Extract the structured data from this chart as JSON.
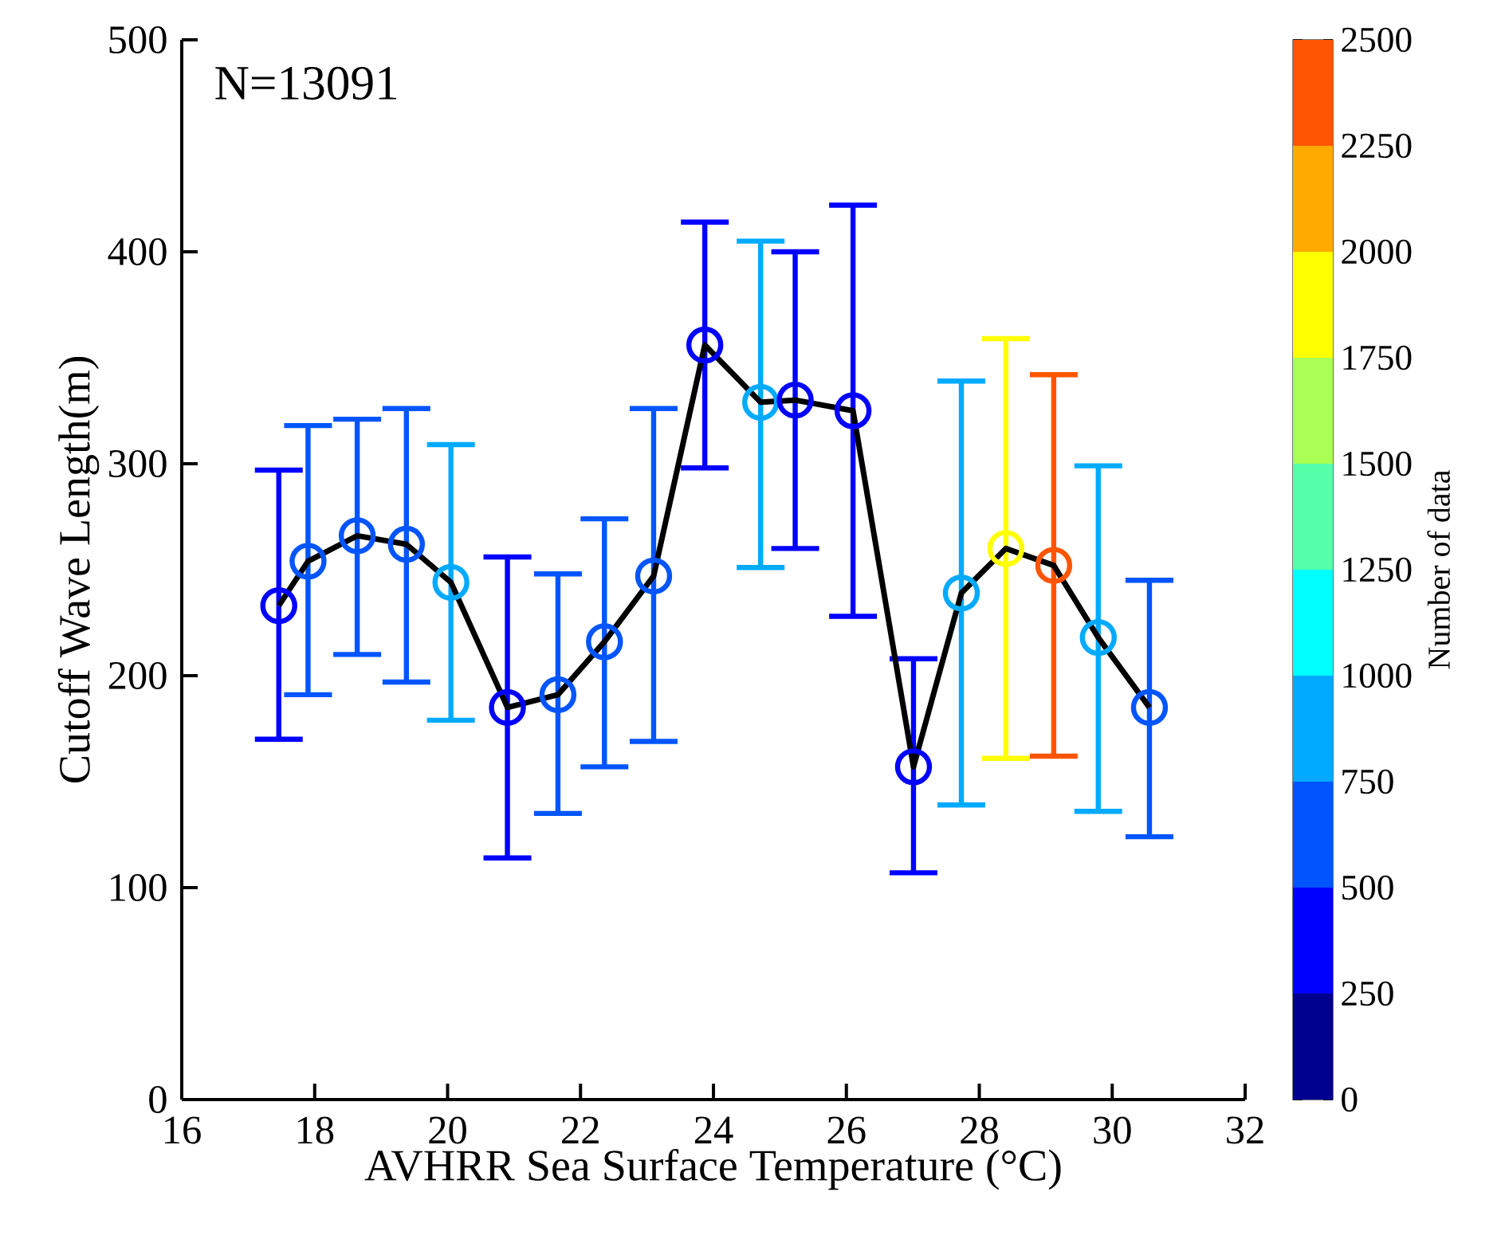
{
  "chart_data": {
    "type": "scatter",
    "xlabel": "AVHRR  Sea Surface Temperature (°C)",
    "ylabel": "Cutoff Wave Length(m)",
    "clabel": "Number of data",
    "annotations": [
      "N=13091"
    ],
    "xlim": [
      16,
      32
    ],
    "xticks": [
      16,
      18,
      20,
      22,
      24,
      26,
      28,
      30,
      32
    ],
    "ylim": [
      0,
      500
    ],
    "yticks": [
      0,
      100,
      200,
      300,
      400,
      500
    ],
    "clim": [
      0,
      2500
    ],
    "cticks": [
      0,
      250,
      500,
      750,
      1000,
      1250,
      1500,
      1750,
      2000,
      2250,
      2500
    ],
    "grid": false,
    "series": [
      {
        "type": "scatter",
        "marker": "circle",
        "x": [
          17.46,
          17.9,
          18.64,
          19.38,
          20.05,
          20.9,
          21.66,
          22.36,
          23.1,
          23.87,
          24.71,
          25.23,
          26.1,
          27.01,
          27.73,
          28.4,
          29.12,
          29.79,
          30.56
        ],
        "values": [
          233,
          254,
          266,
          262,
          244,
          185,
          191,
          216,
          247,
          356,
          329,
          330,
          325,
          157,
          239,
          260,
          252,
          218,
          185
        ],
        "errors": [
          [
            170,
            297
          ],
          [
            191,
            318
          ],
          [
            210,
            321
          ],
          [
            197,
            326
          ],
          [
            179,
            309
          ],
          [
            114,
            256
          ],
          [
            135,
            248
          ],
          [
            157,
            274
          ],
          [
            169,
            326
          ],
          [
            298,
            414
          ],
          [
            251,
            405
          ],
          [
            260,
            400
          ],
          [
            228,
            422
          ],
          [
            107,
            208
          ],
          [
            139,
            339
          ],
          [
            161,
            359
          ],
          [
            162,
            342
          ],
          [
            136,
            299
          ],
          [
            124,
            245
          ]
        ],
        "colors": [
          "#0000ff",
          "#0055ff",
          "#0055ff",
          "#0055ff",
          "#00aaff",
          "#0000ff",
          "#0055ff",
          "#0055ff",
          "#0055ff",
          "#0000ff",
          "#00aaff",
          "#0000ff",
          "#0000ff",
          "#0000ff",
          "#00aaff",
          "#ffff00",
          "#ff5500",
          "#00aaff",
          "#0055ff"
        ]
      },
      {
        "type": "line",
        "color": "#000000",
        "marker": "none",
        "line_style": "solid",
        "x": [
          17.46,
          17.9,
          18.64,
          19.38,
          20.05,
          20.9,
          21.66,
          22.36,
          23.1,
          23.87,
          24.71,
          25.23,
          26.1,
          27.01,
          27.73,
          28.4,
          29.12,
          29.79,
          30.56
        ],
        "values": [
          233,
          254,
          266,
          262,
          244,
          185,
          191,
          216,
          247,
          356,
          329,
          330,
          325,
          157,
          239,
          260,
          252,
          218,
          185
        ]
      }
    ]
  }
}
